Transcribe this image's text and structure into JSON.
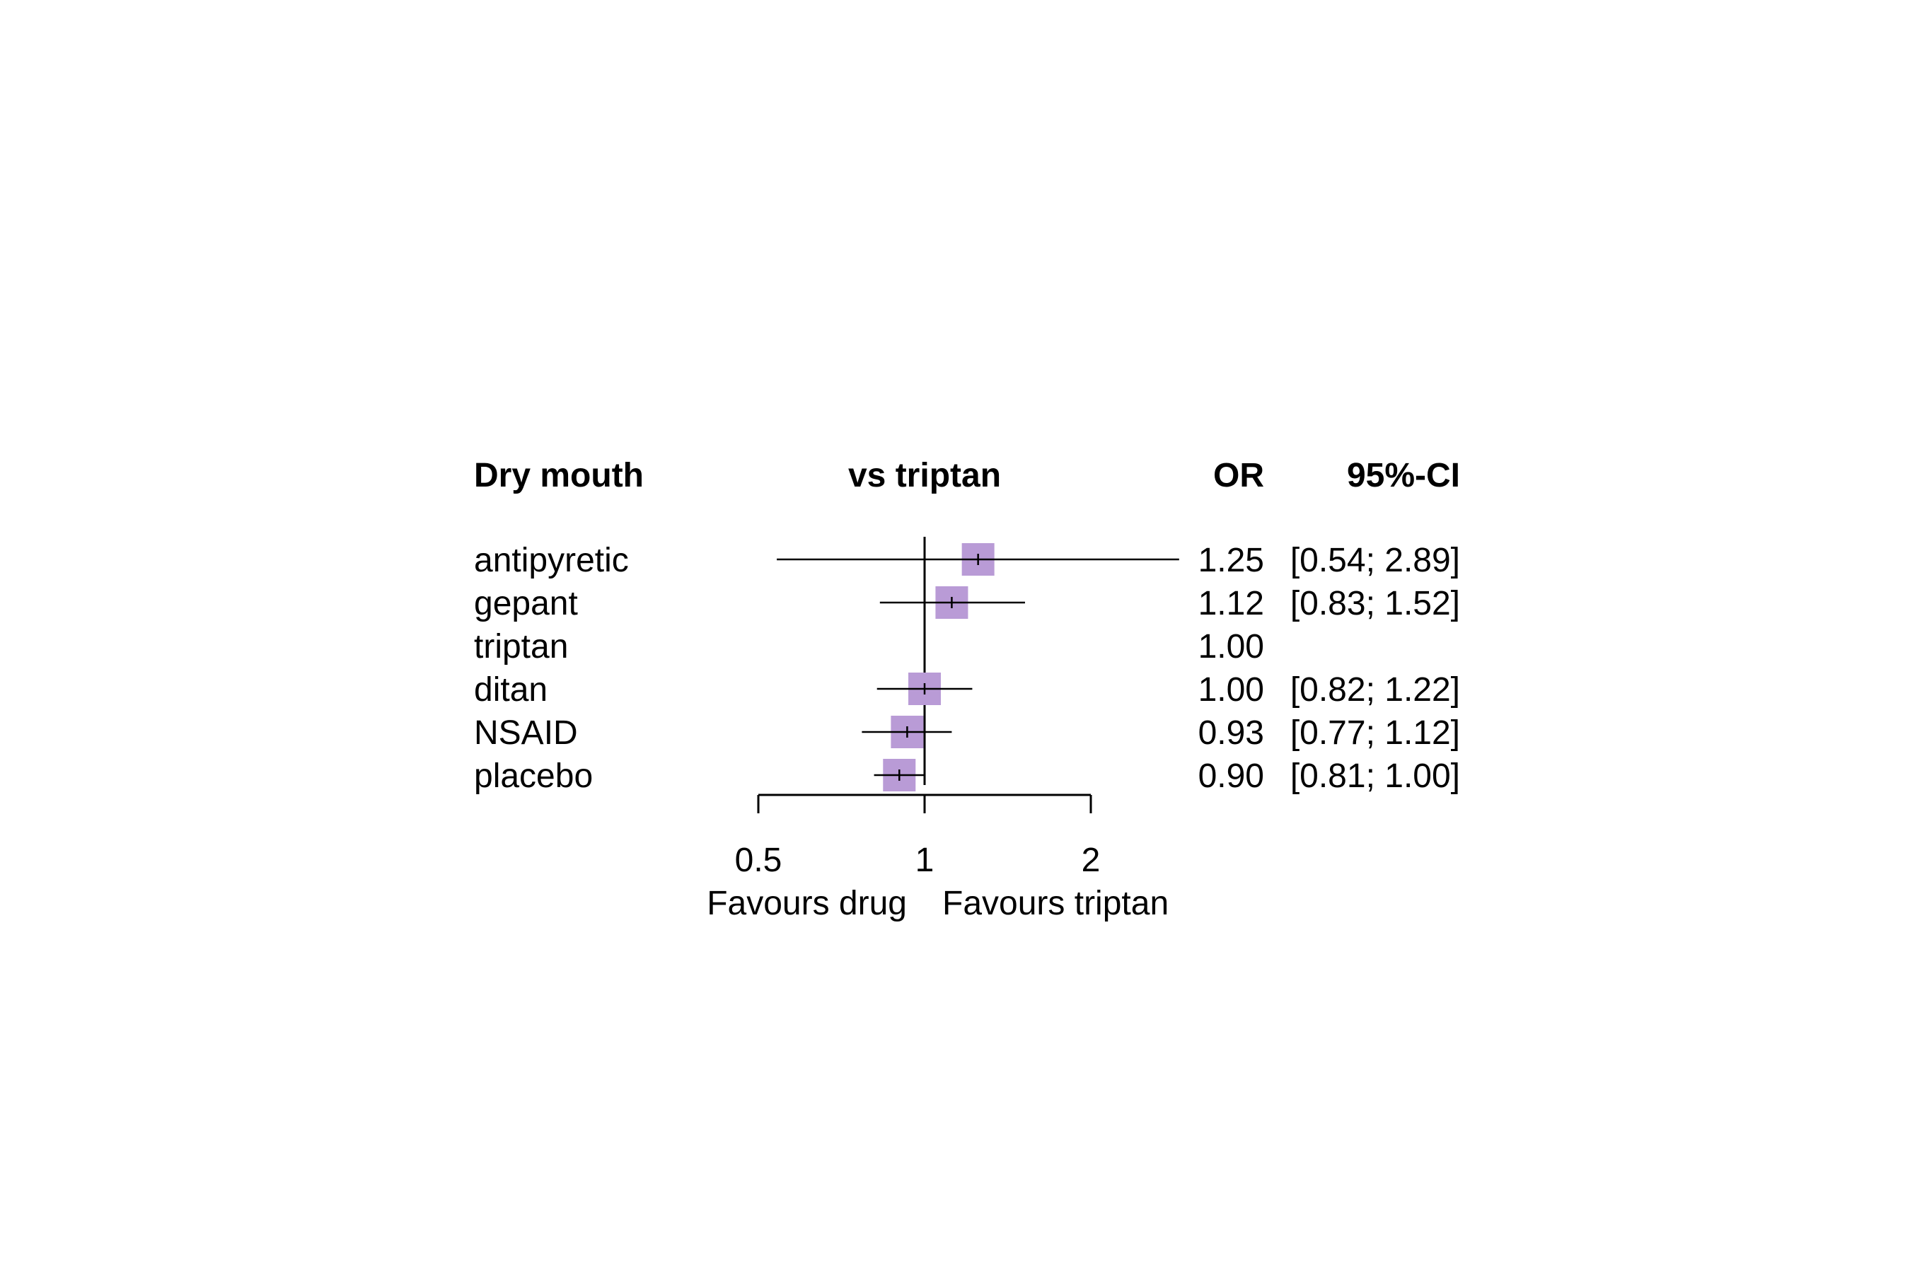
{
  "chart_data": {
    "type": "forest",
    "outcome": "Dry mouth",
    "comparison_header": "vs triptan",
    "or_header": "OR",
    "ci_header": "95%-CI",
    "reference": "triptan",
    "x_scale": "log",
    "xlim": [
      0.5,
      2
    ],
    "ticks": [
      0.5,
      1,
      2
    ],
    "tick_labels": [
      "0.5",
      "1",
      "2"
    ],
    "left_label": "Favours drug",
    "right_label": "Favours triptan",
    "rows": [
      {
        "name": "antipyretic",
        "or": 1.25,
        "lower": 0.54,
        "upper": 2.89,
        "or_text": "1.25",
        "ci_text": "[0.54; 2.89]"
      },
      {
        "name": "gepant",
        "or": 1.12,
        "lower": 0.83,
        "upper": 1.52,
        "or_text": "1.12",
        "ci_text": "[0.83; 1.52]"
      },
      {
        "name": "triptan",
        "or": 1.0,
        "lower": null,
        "upper": null,
        "or_text": "1.00",
        "ci_text": ""
      },
      {
        "name": "ditan",
        "or": 1.0,
        "lower": 0.82,
        "upper": 1.22,
        "or_text": "1.00",
        "ci_text": "[0.82; 1.22]"
      },
      {
        "name": "NSAID",
        "or": 0.93,
        "lower": 0.77,
        "upper": 1.12,
        "or_text": "0.93",
        "ci_text": "[0.77; 1.12]"
      },
      {
        "name": "placebo",
        "or": 0.9,
        "lower": 0.81,
        "upper": 1.0,
        "or_text": "0.90",
        "ci_text": "[0.81; 1.00]"
      }
    ],
    "colors": {
      "marker": "#b99bd6",
      "line": "#000000"
    }
  }
}
